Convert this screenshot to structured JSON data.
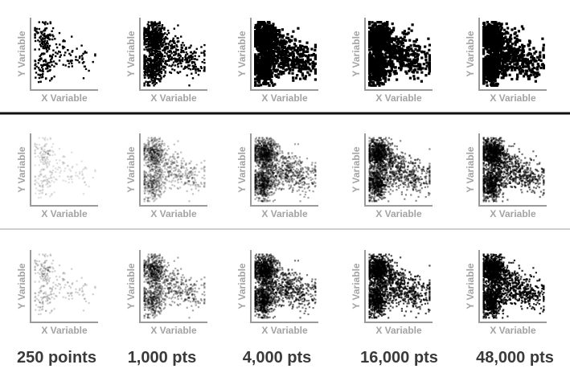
{
  "chart_data": {
    "type": "scatter",
    "grid": false,
    "legend": "none",
    "xlabel": "X Variable",
    "ylabel": "Y Variable",
    "columns": [
      {
        "caption": "250 points",
        "n": 250
      },
      {
        "caption": "1,000 pts",
        "n": 1000
      },
      {
        "caption": "4,000 pts",
        "n": 4000
      },
      {
        "caption": "16,000 pts",
        "n": 16000
      },
      {
        "caption": "48,000 pts",
        "n": 48000
      }
    ],
    "rows": [
      {
        "rendering": "opaque",
        "mark_color": "#000000",
        "mark_opacity": 1.0
      },
      {
        "rendering": "transparent",
        "mark_color": "#000000",
        "mark_opacity": 0.12
      },
      {
        "rendering": "transparent",
        "mark_color": "#000000",
        "mark_opacity": 0.18
      }
    ],
    "colors": {
      "axis": "#9a9a9a",
      "axis_text": "#a3a3a3",
      "caption": "#3a3a3a",
      "divider_strong": "#111111",
      "divider_light": "#bdbdbd"
    }
  }
}
